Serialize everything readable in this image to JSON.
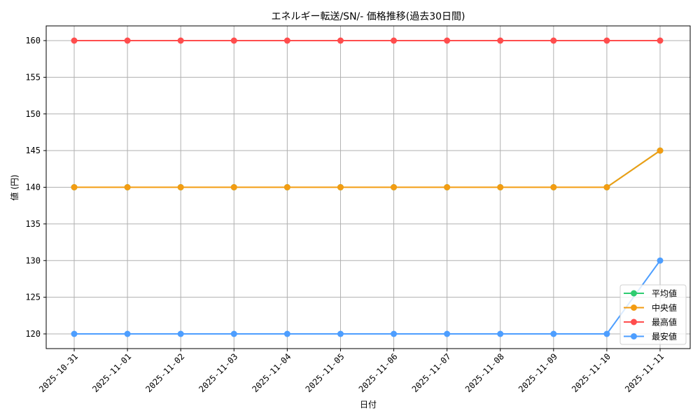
{
  "chart_data": {
    "type": "line",
    "title": "エネルギー転送/SN/- 価格推移(過去30日間)",
    "xlabel": "日付",
    "ylabel": "値 (円)",
    "categories": [
      "2025-10-31",
      "2025-11-01",
      "2025-11-02",
      "2025-11-03",
      "2025-11-04",
      "2025-11-05",
      "2025-11-06",
      "2025-11-07",
      "2025-11-08",
      "2025-11-09",
      "2025-11-10",
      "2025-11-11"
    ],
    "series": [
      {
        "name": "平均値",
        "color": "#2ecc71",
        "values": [
          140,
          140,
          140,
          140,
          140,
          140,
          140,
          140,
          140,
          140,
          140,
          145
        ]
      },
      {
        "name": "中央値",
        "color": "#f39c12",
        "values": [
          140,
          140,
          140,
          140,
          140,
          140,
          140,
          140,
          140,
          140,
          140,
          145
        ]
      },
      {
        "name": "最高値",
        "color": "#ff4d4d",
        "values": [
          160,
          160,
          160,
          160,
          160,
          160,
          160,
          160,
          160,
          160,
          160,
          160
        ]
      },
      {
        "name": "最安値",
        "color": "#4d9eff",
        "values": [
          120,
          120,
          120,
          120,
          120,
          120,
          120,
          120,
          120,
          120,
          120,
          130
        ]
      }
    ],
    "ylim": [
      118,
      162
    ],
    "yticks": [
      120,
      125,
      130,
      135,
      140,
      145,
      150,
      155,
      160
    ],
    "grid": true,
    "legend_position": "lower right"
  }
}
